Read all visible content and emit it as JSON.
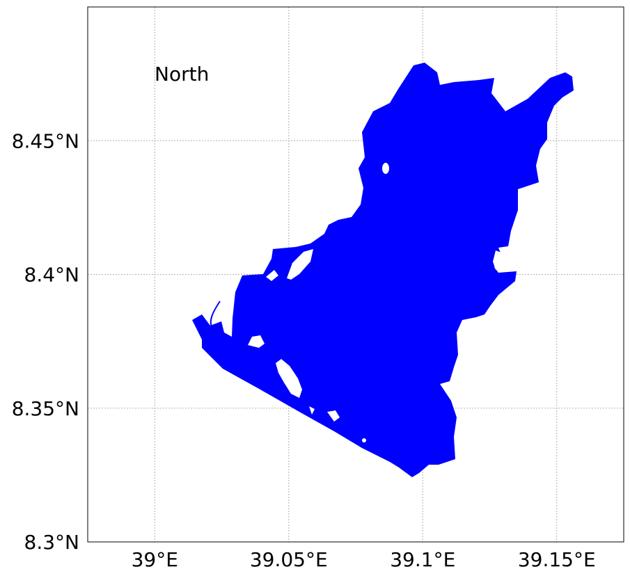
{
  "map": {
    "annotation": "North",
    "colors": {
      "water": "#0000ff",
      "frame": "#000000",
      "grid": "#b0b0b0",
      "background": "#ffffff"
    },
    "xlim": [
      38.975,
      39.175
    ],
    "ylim": [
      8.3,
      8.5
    ],
    "grid": true,
    "x_ticks": [
      {
        "value": 39.0,
        "label": "39°E"
      },
      {
        "value": 39.05,
        "label": "39.05°E"
      },
      {
        "value": 39.1,
        "label": "39.1°E"
      },
      {
        "value": 39.15,
        "label": "39.15°E"
      }
    ],
    "y_ticks": [
      {
        "value": 8.3,
        "label": "8.3°N"
      },
      {
        "value": 8.35,
        "label": "8.35°N"
      },
      {
        "value": 8.4,
        "label": "8.4°N"
      },
      {
        "value": 8.45,
        "label": "8.45°N"
      }
    ]
  }
}
